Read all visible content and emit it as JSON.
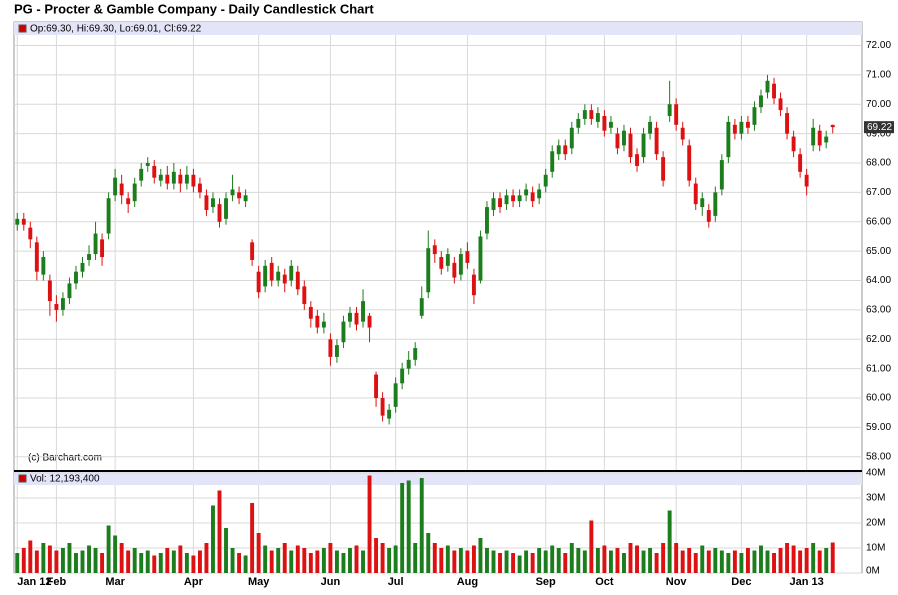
{
  "chart_data": {
    "type": "candlestick",
    "title": "PG - Procter & Gamble Company - Daily Candlestick Chart",
    "legend_text": "Op:69.30, Hi:69.30, Lo:69.01, Cl:69.22",
    "volume_legend_text": "Vol: 12,193,400",
    "source": "(c) Barchart.com",
    "up_color": "#1c7d1c",
    "down_color": "#dd1111",
    "grid": true,
    "categories": [
      "Jan 12",
      null,
      null,
      null,
      null,
      null,
      "Feb",
      null,
      null,
      null,
      null,
      null,
      null,
      null,
      null,
      "Mar",
      null,
      null,
      null,
      null,
      null,
      null,
      null,
      null,
      null,
      null,
      null,
      "Apr",
      null,
      null,
      null,
      null,
      null,
      null,
      null,
      null,
      null,
      "May",
      null,
      null,
      null,
      null,
      null,
      null,
      null,
      null,
      null,
      null,
      "Jun",
      null,
      null,
      null,
      null,
      null,
      null,
      null,
      null,
      null,
      "Jul",
      null,
      null,
      null,
      null,
      null,
      null,
      null,
      null,
      null,
      null,
      "Aug",
      null,
      null,
      null,
      null,
      null,
      null,
      null,
      null,
      null,
      null,
      null,
      "Sep",
      null,
      null,
      null,
      null,
      null,
      null,
      null,
      null,
      "Oct",
      null,
      null,
      null,
      null,
      null,
      null,
      null,
      null,
      null,
      null,
      "Nov",
      null,
      null,
      null,
      null,
      null,
      null,
      null,
      null,
      null,
      "Dec",
      null,
      null,
      null,
      null,
      null,
      null,
      null,
      null,
      null,
      "Jan 13",
      null,
      null,
      null,
      null
    ],
    "open": [
      65.9,
      66.1,
      65.8,
      65.3,
      64.2,
      64.0,
      63.2,
      63.0,
      63.4,
      63.9,
      64.3,
      64.7,
      64.9,
      65.4,
      65.6,
      66.9,
      67.3,
      66.8,
      66.7,
      67.4,
      67.9,
      67.9,
      67.4,
      67.6,
      67.3,
      67.6,
      67.3,
      67.6,
      67.3,
      66.9,
      66.5,
      66.6,
      66.1,
      66.9,
      67.0,
      66.7,
      65.3,
      64.3,
      63.8,
      64.6,
      64.0,
      64.2,
      64.0,
      64.3,
      63.8,
      63.1,
      62.8,
      62.4,
      62.0,
      61.4,
      61.9,
      62.6,
      62.9,
      62.6,
      62.8,
      60.8,
      60.0,
      59.3,
      59.7,
      60.5,
      61.0,
      61.3,
      62.8,
      63.6,
      65.2,
      64.8,
      64.5,
      64.6,
      64.2,
      65.0,
      64.2,
      64.0,
      65.6,
      66.4,
      66.8,
      66.6,
      66.9,
      66.7,
      66.9,
      67.0,
      66.8,
      67.2,
      67.7,
      68.3,
      68.6,
      68.5,
      69.2,
      69.5,
      69.8,
      69.4,
      69.6,
      69.2,
      69.0,
      68.6,
      69.0,
      68.3,
      68.2,
      69.0,
      69.2,
      68.2,
      69.6,
      70.0,
      69.2,
      68.6,
      67.3,
      66.5,
      66.4,
      66.2,
      67.1,
      68.2,
      69.3,
      69.0,
      69.4,
      69.3,
      69.9,
      70.4,
      70.7,
      70.2,
      69.7,
      68.9,
      68.3,
      67.6,
      68.6,
      69.1,
      68.7,
      69.3
    ],
    "high": [
      66.3,
      66.3,
      66.0,
      65.5,
      65.0,
      64.2,
      63.5,
      63.6,
      64.1,
      64.5,
      64.8,
      65.2,
      66.0,
      65.6,
      67.0,
      67.8,
      67.6,
      67.0,
      67.5,
      68.0,
      68.2,
      68.1,
      67.8,
      67.9,
      68.0,
      67.8,
      67.9,
      67.8,
      67.5,
      67.1,
      67.0,
      66.8,
      67.0,
      67.6,
      67.2,
      67.1,
      65.4,
      64.5,
      64.7,
      64.8,
      64.5,
      64.4,
      64.7,
      64.5,
      64.0,
      63.3,
      63.0,
      62.9,
      62.2,
      62.0,
      62.8,
      63.1,
      63.1,
      63.7,
      62.9,
      60.9,
      60.2,
      59.8,
      60.7,
      61.2,
      61.6,
      61.9,
      63.8,
      65.7,
      65.4,
      65.0,
      65.1,
      64.8,
      65.1,
      65.3,
      64.4,
      65.7,
      66.7,
      67.0,
      67.0,
      67.1,
      67.1,
      67.1,
      67.3,
      67.2,
      67.3,
      67.8,
      68.6,
      68.8,
      68.8,
      69.4,
      69.7,
      70.0,
      70.0,
      69.9,
      69.8,
      69.6,
      69.2,
      69.3,
      69.2,
      68.5,
      69.2,
      69.6,
      69.4,
      68.4,
      70.8,
      70.2,
      69.4,
      68.8,
      67.5,
      67.0,
      66.6,
      67.2,
      68.3,
      69.6,
      69.5,
      69.6,
      69.6,
      70.1,
      70.5,
      71.0,
      70.9,
      70.4,
      69.9,
      69.1,
      68.5,
      67.8,
      69.5,
      69.3,
      69.1,
      69.3
    ],
    "low": [
      65.7,
      65.7,
      65.1,
      64.0,
      64.0,
      62.8,
      62.6,
      62.8,
      63.2,
      63.7,
      64.1,
      64.5,
      64.7,
      64.5,
      65.4,
      66.7,
      66.6,
      66.3,
      66.5,
      67.2,
      67.7,
      67.3,
      67.2,
      67.1,
      67.1,
      67.0,
      67.1,
      67.0,
      66.8,
      66.2,
      66.3,
      65.8,
      65.9,
      66.7,
      66.6,
      66.5,
      64.5,
      63.4,
      63.6,
      63.8,
      63.8,
      63.6,
      63.8,
      63.5,
      63.0,
      62.4,
      62.2,
      62.2,
      61.1,
      61.2,
      61.7,
      62.4,
      62.3,
      62.4,
      61.9,
      59.7,
      59.2,
      59.1,
      59.5,
      60.3,
      60.8,
      61.1,
      62.7,
      63.4,
      64.6,
      64.2,
      64.3,
      63.9,
      64.0,
      64.4,
      63.2,
      63.9,
      65.4,
      66.2,
      66.3,
      66.4,
      66.5,
      66.5,
      66.7,
      66.5,
      66.6,
      67.0,
      67.5,
      68.1,
      68.1,
      68.3,
      69.0,
      69.3,
      69.3,
      69.2,
      68.9,
      69.0,
      68.3,
      68.4,
      68.0,
      67.7,
      68.0,
      68.8,
      68.1,
      67.2,
      69.4,
      69.1,
      68.6,
      67.2,
      66.4,
      66.2,
      65.8,
      66.0,
      66.9,
      68.0,
      68.8,
      68.8,
      69.0,
      69.1,
      69.7,
      70.2,
      70.0,
      69.6,
      68.8,
      68.2,
      67.5,
      66.9,
      68.4,
      68.4,
      68.5,
      69.01
    ],
    "close": [
      66.1,
      65.9,
      65.4,
      64.3,
      64.8,
      63.3,
      63.0,
      63.4,
      63.9,
      64.3,
      64.6,
      64.9,
      65.6,
      64.8,
      66.8,
      67.5,
      66.9,
      66.6,
      67.3,
      67.8,
      68.0,
      67.5,
      67.6,
      67.3,
      67.7,
      67.3,
      67.6,
      67.2,
      67.0,
      66.4,
      66.8,
      66.0,
      66.8,
      67.1,
      66.8,
      66.9,
      64.7,
      63.6,
      64.5,
      64.0,
      64.3,
      63.9,
      64.5,
      63.7,
      63.2,
      62.7,
      62.4,
      62.6,
      61.4,
      61.8,
      62.6,
      62.9,
      62.5,
      63.3,
      62.4,
      60.0,
      59.4,
      59.6,
      60.5,
      61.0,
      61.3,
      61.7,
      63.4,
      65.1,
      64.9,
      64.4,
      64.9,
      64.1,
      64.9,
      64.6,
      63.5,
      65.5,
      66.5,
      66.8,
      66.5,
      66.9,
      66.7,
      66.9,
      67.1,
      66.7,
      67.1,
      67.6,
      68.4,
      68.6,
      68.3,
      69.2,
      69.5,
      69.8,
      69.5,
      69.7,
      69.1,
      69.4,
      68.5,
      69.1,
      68.2,
      67.9,
      69.0,
      69.4,
      68.3,
      67.4,
      70.0,
      69.3,
      68.8,
      67.4,
      66.6,
      66.8,
      66.0,
      67.0,
      68.1,
      69.4,
      69.0,
      69.4,
      69.2,
      69.9,
      70.3,
      70.8,
      70.2,
      69.8,
      69.0,
      68.4,
      67.7,
      67.2,
      69.2,
      68.6,
      68.9,
      69.22
    ],
    "volume": [
      8000000,
      10000000,
      13000000,
      9000000,
      12000000,
      11000000,
      9000000,
      10000000,
      12000000,
      8000000,
      9000000,
      11000000,
      10000000,
      8000000,
      19000000,
      15000000,
      12000000,
      9000000,
      10000000,
      8000000,
      9000000,
      7000000,
      8000000,
      10000000,
      9000000,
      11000000,
      8000000,
      7000000,
      9000000,
      12000000,
      27000000,
      33000000,
      18000000,
      10000000,
      8000000,
      7000000,
      28000000,
      16000000,
      11000000,
      9000000,
      10000000,
      12000000,
      9000000,
      11000000,
      10000000,
      8000000,
      9000000,
      10000000,
      12000000,
      9000000,
      8000000,
      10000000,
      11000000,
      9000000,
      39000000,
      14000000,
      12000000,
      10000000,
      11000000,
      36000000,
      37000000,
      12000000,
      38000000,
      16000000,
      12000000,
      10000000,
      11000000,
      9000000,
      10000000,
      9000000,
      11000000,
      14000000,
      10000000,
      9000000,
      8000000,
      9000000,
      8000000,
      7000000,
      9000000,
      8000000,
      10000000,
      9000000,
      11000000,
      10000000,
      8000000,
      12000000,
      10000000,
      9000000,
      21000000,
      10000000,
      11000000,
      9000000,
      10000000,
      8000000,
      12000000,
      11000000,
      9000000,
      10000000,
      8000000,
      12000000,
      25000000,
      12000000,
      9000000,
      10000000,
      8000000,
      11000000,
      9000000,
      10000000,
      9000000,
      8000000,
      9000000,
      8000000,
      10000000,
      9000000,
      11000000,
      9000000,
      8000000,
      10000000,
      12000000,
      11000000,
      9000000,
      10000000,
      12000000,
      9000000,
      10000000,
      12193400
    ],
    "last_price": 69.22,
    "ylim": [
      57.55,
      72.8
    ],
    "yticks": [
      {
        "value": 58,
        "label": "58.00"
      },
      {
        "value": 59,
        "label": "59.00"
      },
      {
        "value": 60,
        "label": "60.00"
      },
      {
        "value": 61,
        "label": "61.00"
      },
      {
        "value": 62,
        "label": "62.00"
      },
      {
        "value": 63,
        "label": "63.00"
      },
      {
        "value": 64,
        "label": "64.00"
      },
      {
        "value": 65,
        "label": "65.00"
      },
      {
        "value": 66,
        "label": "66.00"
      },
      {
        "value": 67,
        "label": "67.00"
      },
      {
        "value": 68,
        "label": "68.00"
      },
      {
        "value": 69,
        "label": "69.00"
      },
      {
        "value": 70,
        "label": "70.00"
      },
      {
        "value": 71,
        "label": "71.00"
      },
      {
        "value": 72,
        "label": "72.00"
      }
    ],
    "volume_ylim": [
      0,
      40000000
    ],
    "volume_yticks": [
      {
        "value": 0,
        "label": "0M"
      },
      {
        "value": 10000000,
        "label": "10M"
      },
      {
        "value": 20000000,
        "label": "20M"
      },
      {
        "value": 30000000,
        "label": "30M"
      },
      {
        "value": 40000000,
        "label": "40M"
      }
    ]
  }
}
